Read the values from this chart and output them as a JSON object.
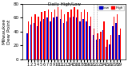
{
  "title": "Milwaukee Weather Dew Point",
  "subtitle": "Daily High/Low",
  "bar_width": 0.35,
  "background_color": "#ffffff",
  "plot_bg_color": "#ffffff",
  "high_color": "#ff0000",
  "low_color": "#0000cc",
  "legend_high": "High",
  "legend_low": "Low",
  "days": [
    1,
    2,
    3,
    4,
    5,
    6,
    7,
    8,
    9,
    10,
    11,
    12,
    13,
    14,
    15,
    16,
    17,
    18,
    19,
    20,
    21,
    22,
    23,
    24,
    25,
    26,
    27,
    28,
    29
  ],
  "highs": [
    55,
    62,
    65,
    62,
    68,
    70,
    72,
    68,
    72,
    75,
    72,
    65,
    68,
    72,
    75,
    72,
    68,
    72,
    68,
    62,
    45,
    38,
    40,
    55,
    28,
    35,
    62,
    65,
    45
  ],
  "lows": [
    38,
    50,
    52,
    48,
    55,
    58,
    60,
    55,
    60,
    62,
    58,
    52,
    55,
    60,
    62,
    60,
    55,
    58,
    55,
    48,
    35,
    28,
    30,
    42,
    18,
    22,
    48,
    52,
    35
  ],
  "ylim": [
    0,
    80
  ],
  "yticks": [
    0,
    20,
    40,
    60,
    80
  ],
  "dashed_lines": [
    21,
    22
  ],
  "ylabel_fontsize": 4,
  "xlabel_fontsize": 3.5,
  "title_fontsize": 4.5,
  "subtitle_fontsize": 4.0
}
